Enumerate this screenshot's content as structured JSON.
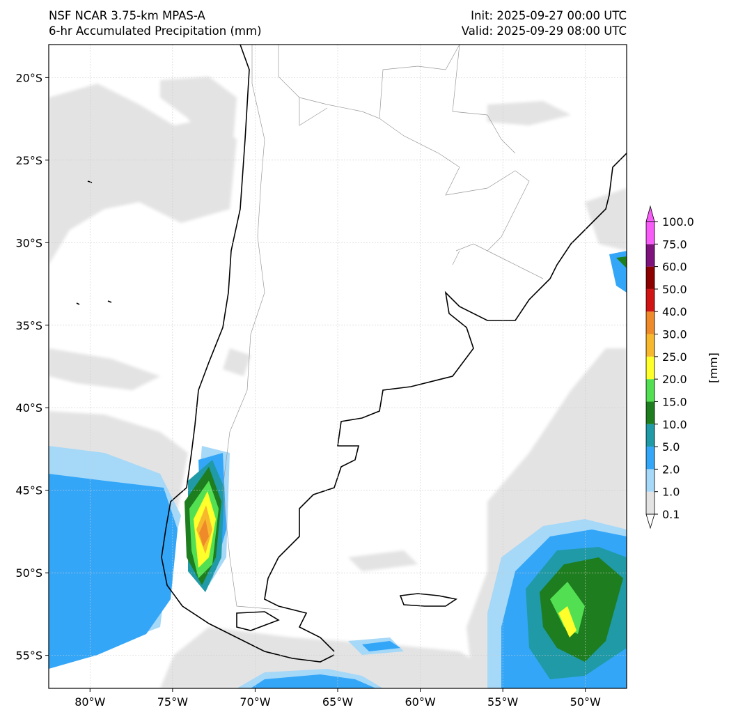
{
  "header": {
    "model": "NSF NCAR 3.75-km MPAS-A",
    "field": "6-hr Accumulated Precipitation (mm)",
    "init": "Init: 2025-09-27 00:00 UTC",
    "valid": "Valid: 2025-09-29 08:00 UTC"
  },
  "map": {
    "lon_range": [
      -82.5,
      -47.5
    ],
    "lat_range": [
      -57,
      -18
    ],
    "lat_ticks": [
      {
        "value": -20,
        "label": "20°S"
      },
      {
        "value": -25,
        "label": "25°S"
      },
      {
        "value": -30,
        "label": "30°S"
      },
      {
        "value": -35,
        "label": "35°S"
      },
      {
        "value": -40,
        "label": "40°S"
      },
      {
        "value": -45,
        "label": "45°S"
      },
      {
        "value": -50,
        "label": "50°S"
      },
      {
        "value": -55,
        "label": "55°S"
      }
    ],
    "lon_ticks": [
      {
        "value": -80,
        "label": "80°W"
      },
      {
        "value": -75,
        "label": "75°W"
      },
      {
        "value": -70,
        "label": "70°W"
      },
      {
        "value": -65,
        "label": "65°W"
      },
      {
        "value": -60,
        "label": "60°W"
      },
      {
        "value": -55,
        "label": "55°W"
      },
      {
        "value": -50,
        "label": "50°W"
      }
    ],
    "gridlines": true,
    "coastline_color": "#000000",
    "border_color": "#999999"
  },
  "colorbar": {
    "unit_label": "[mm]",
    "levels": [
      "0.1",
      "1.0",
      "2.0",
      "5.0",
      "10.0",
      "15.0",
      "20.0",
      "25.0",
      "30.0",
      "40.0",
      "50.0",
      "60.0",
      "75.0",
      "100.0"
    ],
    "colors": [
      "#e3e3e3",
      "#a6d8f8",
      "#33a6f8",
      "#1f9aa6",
      "#1e7d1e",
      "#52e052",
      "#ffff2b",
      "#f7b82e",
      "#ee8a2a",
      "#d01414",
      "#8c0000",
      "#7e137e",
      "#f85cf8"
    ]
  }
}
